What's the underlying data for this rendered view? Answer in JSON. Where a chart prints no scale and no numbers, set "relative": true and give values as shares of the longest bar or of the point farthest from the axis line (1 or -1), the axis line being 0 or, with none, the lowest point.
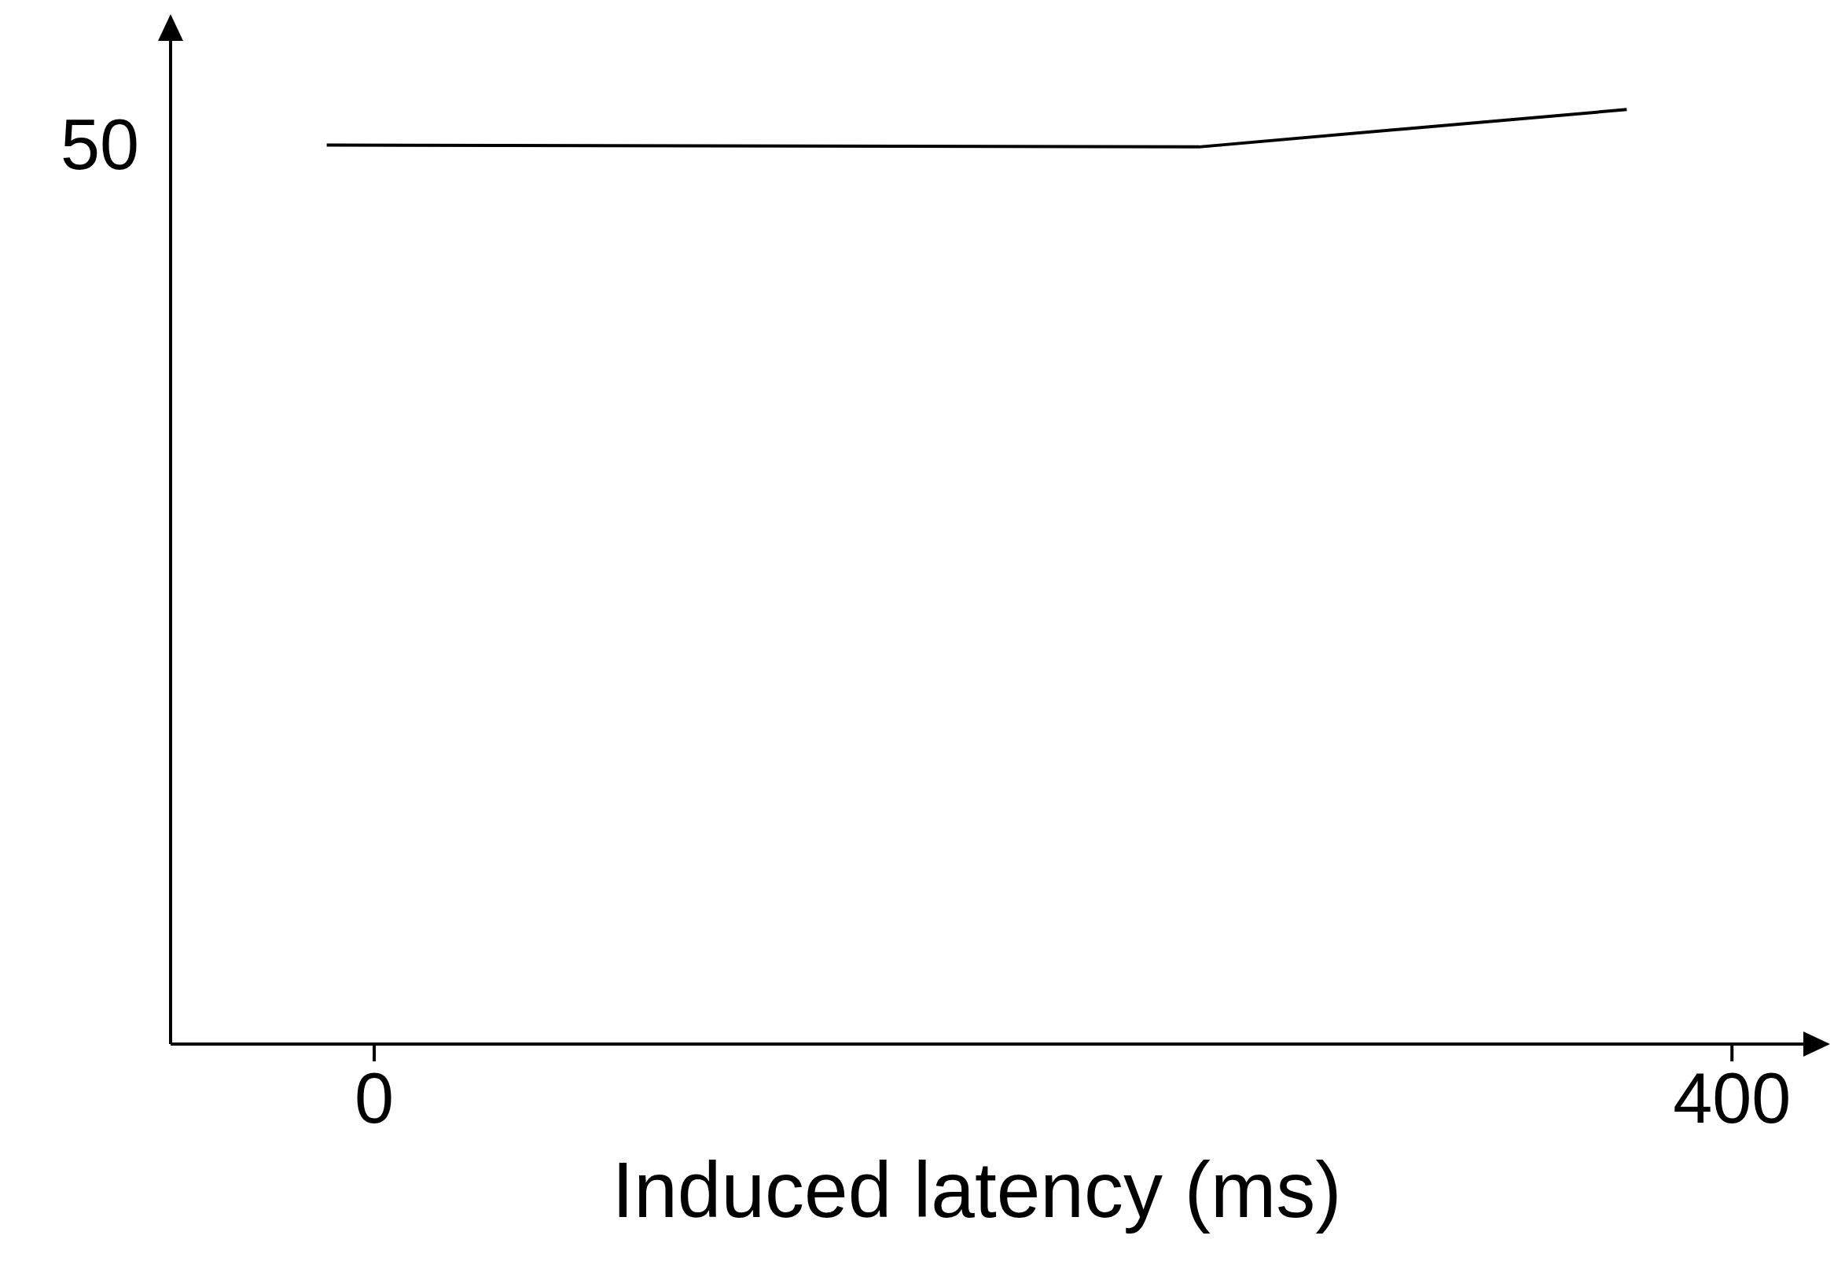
{
  "chart_data": {
    "type": "line",
    "xlabel": "Induced latency (ms)",
    "relative": true,
    "annotations": [
      "50"
    ],
    "x": [
      -14,
      243,
      369
    ],
    "series": [
      {
        "color": "#000000",
        "values": [
          0.962,
          0.96,
          1
        ]
      }
    ],
    "xlim": [
      -60,
      415
    ],
    "xticks": [
      0,
      400
    ],
    "grid": false,
    "legend": false,
    "marker": "none",
    "line_style": "solid"
  }
}
